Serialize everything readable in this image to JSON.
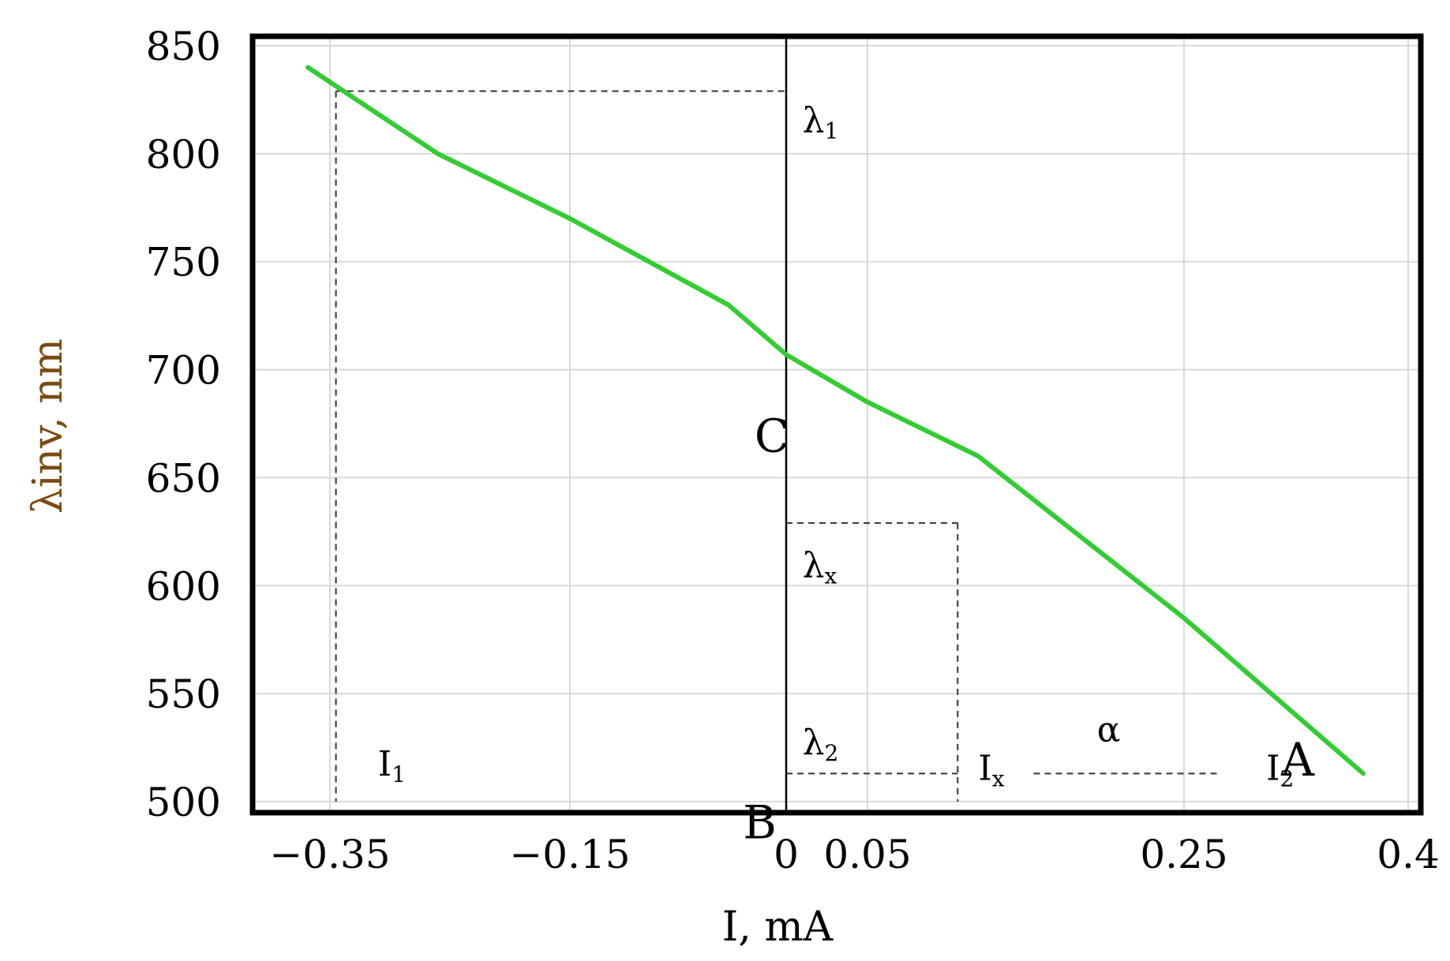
{
  "chart_data": {
    "type": "line",
    "xlabel": "I, mA",
    "ylabel": "λinv, nm",
    "xlim": [
      -0.42,
      0.42
    ],
    "ylim": [
      500,
      850
    ],
    "grid": true,
    "x_ticks": [
      {
        "value": -0.35,
        "label": "-0.35"
      },
      {
        "value": -0.15,
        "label": "-0.15"
      },
      {
        "value": 0,
        "label": "0"
      },
      {
        "value": 0.05,
        "label": "0.05"
      },
      {
        "value": 0.25,
        "label": "0.25"
      },
      {
        "value": 0.4,
        "label": "0.4"
      }
    ],
    "y_ticks": [
      {
        "value": 850,
        "label": "850"
      },
      {
        "value": 800,
        "label": "800"
      },
      {
        "value": 750,
        "label": "750"
      },
      {
        "value": 700,
        "label": "700"
      },
      {
        "value": 650,
        "label": "650"
      },
      {
        "value": 600,
        "label": "600"
      },
      {
        "value": 550,
        "label": "550"
      },
      {
        "value": 500,
        "label": "500"
      }
    ],
    "series": [
      {
        "color": "#33cc33",
        "x": [
          -0.37,
          -0.26,
          -0.15,
          -0.04,
          0.0,
          0.05,
          0.12,
          0.25,
          0.37
        ],
        "y": [
          840,
          800,
          770,
          730,
          707,
          685,
          660,
          585,
          513
        ]
      }
    ],
    "annotations": [
      {
        "text": "λ1",
        "x": 0.01,
        "y": 810
      },
      {
        "text": "λx",
        "x": 0.01,
        "y": 604
      },
      {
        "text": "λ2",
        "x": 0.01,
        "y": 522
      },
      {
        "text": "I1",
        "x": -0.31,
        "y": 512
      },
      {
        "text": "Ix",
        "x": 0.12,
        "y": 510
      },
      {
        "text": "I2",
        "x": 0.305,
        "y": 510
      },
      {
        "text": "α",
        "x": 0.195,
        "y": 528
      },
      {
        "text": "C",
        "x": -0.022,
        "y": 662
      },
      {
        "text": "A",
        "x": 0.315,
        "y": 512
      },
      {
        "text": "B",
        "x": -0.03,
        "y": 483
      }
    ],
    "guide_lines": [
      {
        "x1": -0.345,
        "y1": 829,
        "x2": 0.0,
        "y2": 829
      },
      {
        "x1": -0.345,
        "y1": 829,
        "x2": -0.345,
        "y2": 500
      },
      {
        "x1": 0.0,
        "y1": 629,
        "x2": 0.107,
        "y2": 629
      },
      {
        "x1": 0.107,
        "y1": 629,
        "x2": 0.107,
        "y2": 500
      },
      {
        "x1": 0.0,
        "y1": 513,
        "x2": 0.107,
        "y2": 513
      },
      {
        "x1": 0.155,
        "y1": 513,
        "x2": 0.275,
        "y2": 513
      }
    ],
    "colors": {
      "curve": "#33cc33",
      "axis_title": "#7a4a10",
      "grid": "#d9d9d9"
    }
  }
}
